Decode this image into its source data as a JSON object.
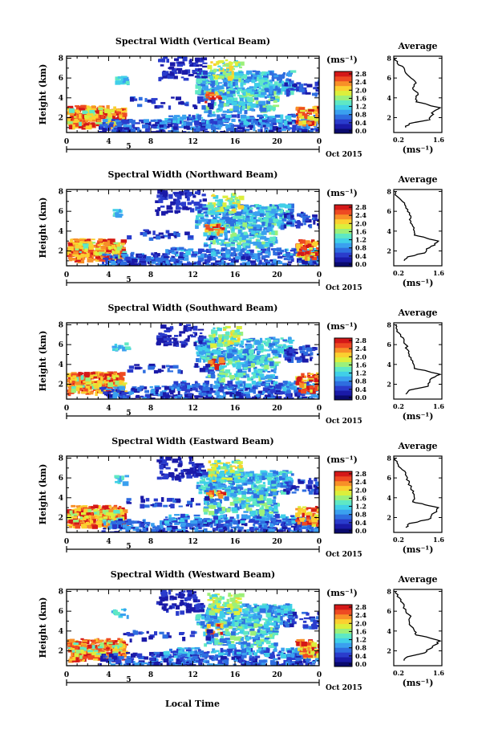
{
  "panels": [
    {
      "title": "Spectral Width (Vertical Beam)"
    },
    {
      "title": "Spectral Width (Northward Beam)"
    },
    {
      "title": "Spectral Width (Southward Beam)"
    },
    {
      "title": "Spectral Width (Eastward Beam)"
    },
    {
      "title": "Spectral Width (Westward Beam)"
    }
  ],
  "avg_title": "Average",
  "avg_xlabel": "(ms⁻¹)",
  "ylabel": "Height (km)",
  "colorbar_unit": "(ms⁻¹)",
  "date_label": "Oct 2015",
  "xlabel_bottom": "Local Time",
  "day_label": "5",
  "chart_data": {
    "type": "heatmap",
    "x_label": "Local Time",
    "x_ticks": [
      "0",
      "4",
      "8",
      "12",
      "16",
      "20",
      "0"
    ],
    "x_range": [
      0,
      24
    ],
    "y_label": "Height (km)",
    "y_ticks": [
      "2",
      "4",
      "6",
      "8"
    ],
    "y_range": [
      0.5,
      8.2
    ],
    "colorbar": {
      "unit": "(ms⁻¹)",
      "ticks": [
        "0.0",
        "0.4",
        "0.8",
        "1.2",
        "1.6",
        "2.0",
        "2.4",
        "2.8"
      ],
      "range": [
        0,
        3.0
      ],
      "colors": [
        "#0a0a6e",
        "#1a1aa8",
        "#2a3ccc",
        "#2e6ee0",
        "#3aa0ef",
        "#40cfe8",
        "#5fe8c4",
        "#9cf07a",
        "#dcef3c",
        "#fbd030",
        "#f89028",
        "#ee4a22",
        "#d41818"
      ]
    },
    "average_profile": {
      "x_ticks": [
        "0.2",
        "1.6"
      ],
      "x_range": [
        0.2,
        1.6
      ],
      "y_range": [
        0.5,
        8.2
      ],
      "heights": [
        1.0,
        1.4,
        1.8,
        2.2,
        2.6,
        3.0,
        3.3,
        3.6,
        4.0,
        4.5,
        5.0,
        5.5,
        6.0,
        6.5,
        7.0,
        7.5,
        8.0
      ],
      "series": [
        {
          "values": [
            0.55,
            0.65,
            1.25,
            1.3,
            1.35,
            1.55,
            1.2,
            0.85,
            0.85,
            0.9,
            0.75,
            0.85,
            0.7,
            0.55,
            0.5,
            0.3,
            0.25
          ]
        },
        {
          "values": [
            0.5,
            0.6,
            1.1,
            1.15,
            1.4,
            1.5,
            1.15,
            0.8,
            0.8,
            0.75,
            0.7,
            0.7,
            0.6,
            0.55,
            0.45,
            0.3,
            0.25
          ]
        },
        {
          "values": [
            0.55,
            0.65,
            1.2,
            1.25,
            1.3,
            1.55,
            1.2,
            0.8,
            0.78,
            0.7,
            0.65,
            0.6,
            0.55,
            0.5,
            0.4,
            0.3,
            0.25
          ]
        },
        {
          "values": [
            0.55,
            0.65,
            1.2,
            1.3,
            1.45,
            1.5,
            1.1,
            0.75,
            0.8,
            0.75,
            0.7,
            0.65,
            0.6,
            0.55,
            0.4,
            0.3,
            0.25
          ]
        },
        {
          "values": [
            0.5,
            0.6,
            1.1,
            1.25,
            1.4,
            1.55,
            1.25,
            0.85,
            0.8,
            0.7,
            0.65,
            0.7,
            0.55,
            0.5,
            0.4,
            0.3,
            0.25
          ]
        }
      ]
    }
  }
}
